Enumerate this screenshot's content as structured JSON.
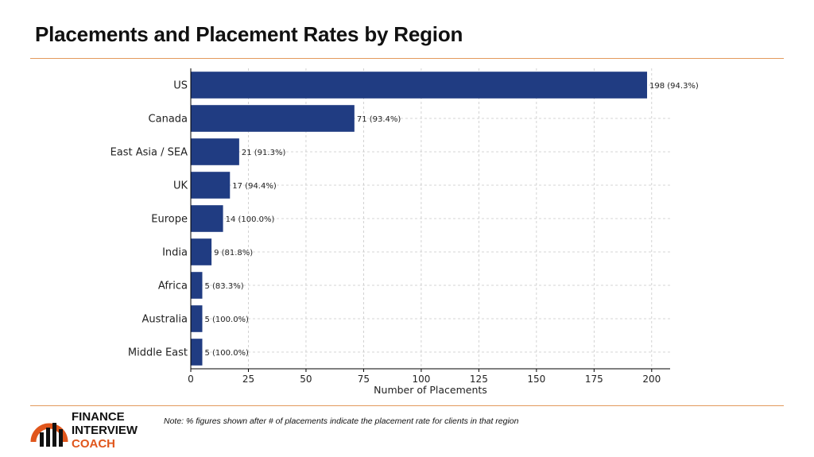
{
  "slide": {
    "title": "Placements and Placement Rates by Region",
    "note": "Note: % figures shown after # of placements indicate the placement rate for clients in that region"
  },
  "logo": {
    "line1": "FINANCE",
    "line2": "INTERVIEW",
    "line3": "COACH",
    "icon": "bar-chart-arc-logo-icon",
    "accent_color": "#e0561c"
  },
  "colors": {
    "bar": "#203c82",
    "rule": "#e39a5c"
  },
  "chart_data": {
    "type": "bar",
    "orientation": "horizontal",
    "categories": [
      "US",
      "Canada",
      "East Asia / SEA",
      "UK",
      "Europe",
      "India",
      "Africa",
      "Australia",
      "Middle East"
    ],
    "values": [
      198,
      71,
      21,
      17,
      14,
      9,
      5,
      5,
      5
    ],
    "data_labels": [
      "198 (94.3%)",
      "71 (93.4%)",
      "21 (91.3%)",
      "17 (94.4%)",
      "14 (100.0%)",
      "9 (81.8%)",
      "5 (83.3%)",
      "5 (100.0%)",
      "5 (100.0%)"
    ],
    "xlabel": "Number of Placements",
    "ylabel": "",
    "xlim": [
      0,
      208
    ],
    "xticks": [
      0,
      25,
      50,
      75,
      100,
      125,
      150,
      175,
      200
    ],
    "grid": true,
    "legend": "none"
  }
}
